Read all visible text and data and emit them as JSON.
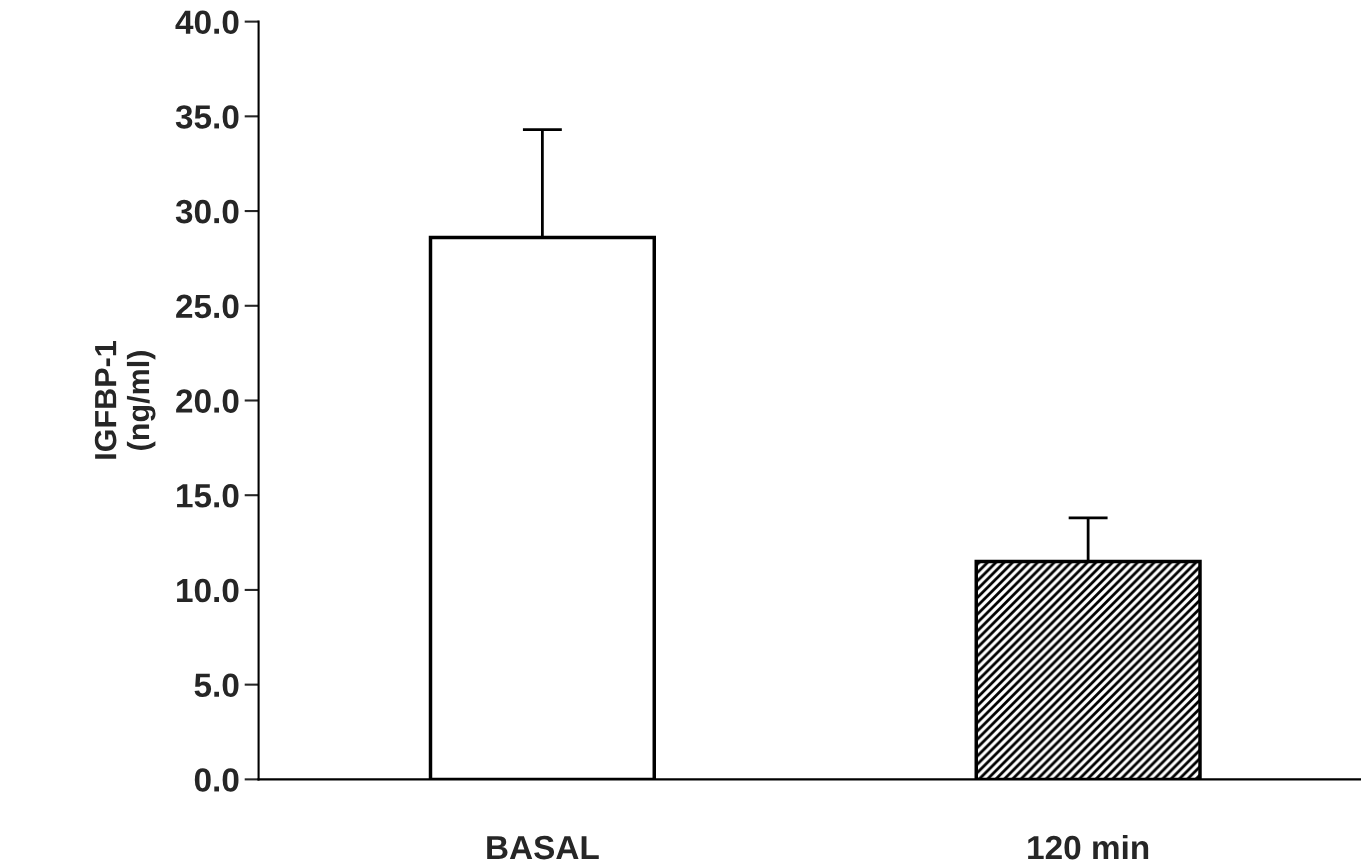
{
  "chart_data": {
    "type": "bar",
    "ylabel": "IGFBP-1\n(ng/ml)",
    "categories": [
      "BASAL",
      "120 min"
    ],
    "values": [
      28.6,
      11.5
    ],
    "colors": [
      "#ffffff",
      "#000000"
    ],
    "errors": [
      [
        28.6,
        34.3
      ],
      [
        11.5,
        13.8
      ]
    ],
    "ylim": [
      0,
      40
    ],
    "yticks": [
      {
        "value": 0,
        "label": "0.0"
      },
      {
        "value": 5,
        "label": "5.0"
      },
      {
        "value": 10,
        "label": "10.0"
      },
      {
        "value": 15,
        "label": "15.0"
      },
      {
        "value": 20,
        "label": "20.0"
      },
      {
        "value": 25,
        "label": "25.0"
      },
      {
        "value": 30,
        "label": "30.0"
      },
      {
        "value": 35,
        "label": "35.0"
      },
      {
        "value": 40,
        "label": "40.0"
      }
    ],
    "grid": false,
    "legend": false
  }
}
